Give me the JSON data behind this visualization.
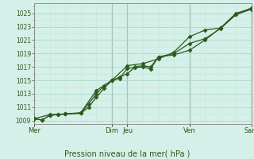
{
  "xlabel": "Pression niveau de la mer( hPa )",
  "bg_color": "#d4f0e8",
  "plot_bg_color": "#d4f0e8",
  "grid_major_color": "#b0d8c8",
  "grid_minor_color": "#c4e8d8",
  "dark_line_color": "#888888",
  "line_color": "#2d5a1e",
  "ylim": [
    1008.5,
    1026.5
  ],
  "yticks": [
    1009,
    1011,
    1013,
    1015,
    1017,
    1019,
    1021,
    1023,
    1025
  ],
  "xtick_day_labels": [
    "Mer",
    "Dim",
    "Jeu",
    "Ven",
    "Sam"
  ],
  "xtick_day_pos": [
    0,
    5,
    6,
    10,
    14
  ],
  "xmax": 14,
  "vline_pos": [
    0,
    5,
    6,
    10,
    14
  ],
  "line1_x": [
    0,
    0.5,
    1,
    1.5,
    2,
    3,
    3.5,
    4,
    4.5,
    5,
    5.5,
    6,
    6.5,
    7,
    7.5,
    8,
    9,
    10,
    11,
    12,
    13,
    14
  ],
  "line1_y": [
    1009.3,
    1009.1,
    1009.8,
    1009.9,
    1010.0,
    1010.1,
    1011.0,
    1012.5,
    1013.8,
    1015.0,
    1015.3,
    1016.8,
    1016.9,
    1017.0,
    1016.7,
    1018.5,
    1019.0,
    1020.5,
    1021.2,
    1022.7,
    1024.8,
    1025.6
  ],
  "line2_x": [
    0,
    0.5,
    1,
    1.5,
    2,
    3,
    3.5,
    4,
    4.5,
    5,
    5.5,
    6,
    6.5,
    7,
    7.5,
    8,
    9,
    10,
    11,
    12,
    13,
    14
  ],
  "line2_y": [
    1009.3,
    1009.1,
    1009.8,
    1009.9,
    1010.0,
    1010.1,
    1011.5,
    1013.0,
    1014.2,
    1015.0,
    1015.5,
    1016.0,
    1017.0,
    1017.2,
    1017.0,
    1018.5,
    1018.8,
    1019.5,
    1021.0,
    1022.8,
    1025.0,
    1025.7
  ],
  "line3_x": [
    0,
    1,
    2,
    3,
    4,
    5,
    6,
    7,
    8,
    9,
    10,
    11,
    12,
    13,
    14
  ],
  "line3_y": [
    1009.3,
    1009.9,
    1010.0,
    1010.2,
    1013.5,
    1015.0,
    1017.2,
    1017.5,
    1018.2,
    1019.2,
    1021.5,
    1022.5,
    1022.8,
    1024.8,
    1025.8
  ]
}
